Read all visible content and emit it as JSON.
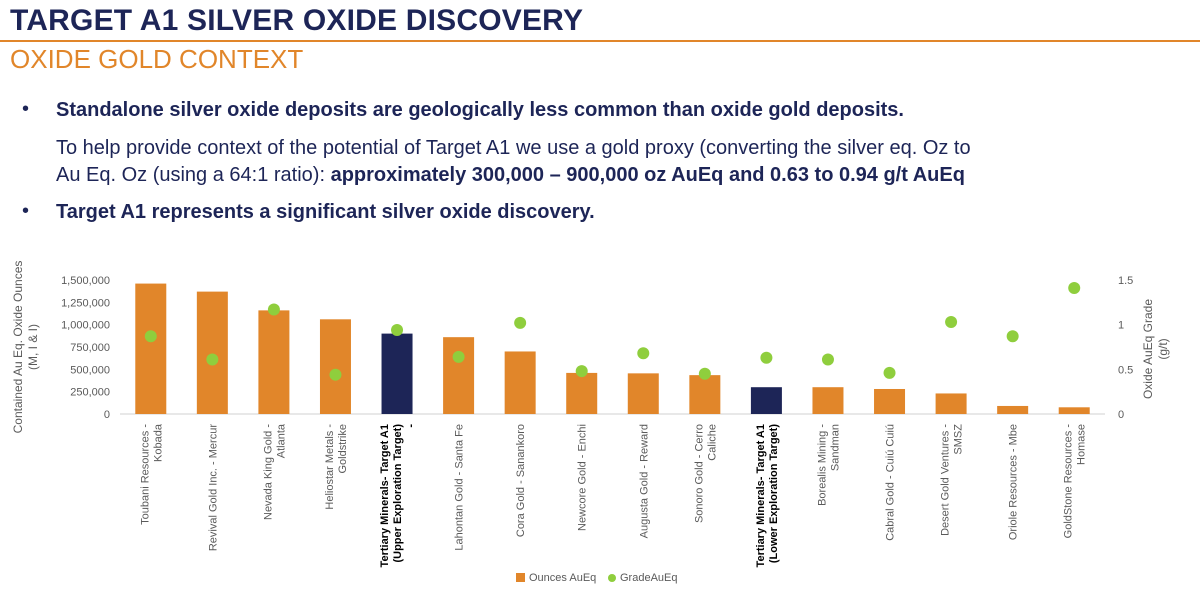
{
  "header": {
    "title": "TARGET A1 SILVER OXIDE DISCOVERY",
    "subtitle": "OXIDE GOLD CONTEXT"
  },
  "bullets": {
    "b1": "Standalone silver oxide deposits are geologically less common than oxide gold deposits.",
    "p_line1": "To help provide context of the potential of Target A1 we use a gold proxy (converting the silver eq. Oz to",
    "p_line2_plain": "Au Eq. Oz (using a 64:1 ratio): ",
    "p_line2_bold": "approximately 300,000 – 900,000 oz AuEq and 0.63 to 0.94 g/t AuEq",
    "b2": "Target A1 represents a significant silver oxide discovery.",
    "marker": "•"
  },
  "colors": {
    "bar": "#e1862a",
    "highlight_bar": "#1d2557",
    "grade": "#8fce3d",
    "text": "#1d2557",
    "axis_text": "#5a5a5a"
  },
  "chart_data": {
    "type": "bar",
    "ylabel": "Contained Au Eq. Oxide Ounces (M, I & I)",
    "y2label": "Oxide AuEq Grade (g/t)",
    "ylim": [
      0,
      1500000
    ],
    "y2lim": [
      0,
      1.5
    ],
    "yticks": [
      "0",
      "250,000",
      "500,000",
      "750,000",
      "1,000,000",
      "1,250,000",
      "1,500,000"
    ],
    "y2ticks": [
      "0",
      "0.5",
      "1",
      "1.5"
    ],
    "categories": [
      [
        "Toubani Resources -",
        "Kobada"
      ],
      [
        "Revival Gold Inc. - Mercur"
      ],
      [
        "Nevada King Gold -",
        "Atlanta"
      ],
      [
        "Heliostar Metals -",
        "Goldstrike"
      ],
      [
        "Tertiary Minerals- Target A1",
        "(Upper Exploration Target)",
        "-"
      ],
      [
        "Lahontan Gold - Santa Fe"
      ],
      [
        "Cora Gold - Sanankoro"
      ],
      [
        "Newcore Gold - Enchi"
      ],
      [
        "Augusta Gold - Reward"
      ],
      [
        "Sonoro Gold - Cerro",
        "Caliche"
      ],
      [
        "Tertiary Minerals- Target A1",
        "(Lower Exploration Target)"
      ],
      [
        "Borealis Mining -",
        "Sandman"
      ],
      [
        "Cabral Gold - Cuiú Cuiú"
      ],
      [
        "Desert Gold Ventures -",
        "SMSZ"
      ],
      [
        "Oriole Resources - Mbe"
      ],
      [
        "GoldStone Resources -",
        "Homase"
      ]
    ],
    "highlight": [
      false,
      false,
      false,
      false,
      true,
      false,
      false,
      false,
      false,
      false,
      true,
      false,
      false,
      false,
      false,
      false
    ],
    "series": [
      {
        "name": "Ounces AuEq",
        "kind": "bar",
        "values": [
          1460000,
          1370000,
          1160000,
          1060000,
          900000,
          860000,
          700000,
          460000,
          455000,
          435000,
          300000,
          300000,
          280000,
          230000,
          90000,
          75000
        ]
      },
      {
        "name": "GradeAuEq",
        "kind": "scatter",
        "values": [
          0.87,
          0.61,
          1.17,
          0.44,
          0.94,
          0.64,
          1.02,
          0.48,
          0.68,
          0.45,
          0.63,
          0.61,
          0.46,
          1.03,
          0.87,
          1.41
        ]
      }
    ],
    "legend": [
      "Ounces AuEq",
      "GradeAuEq"
    ],
    "legend_position": "bottom"
  }
}
